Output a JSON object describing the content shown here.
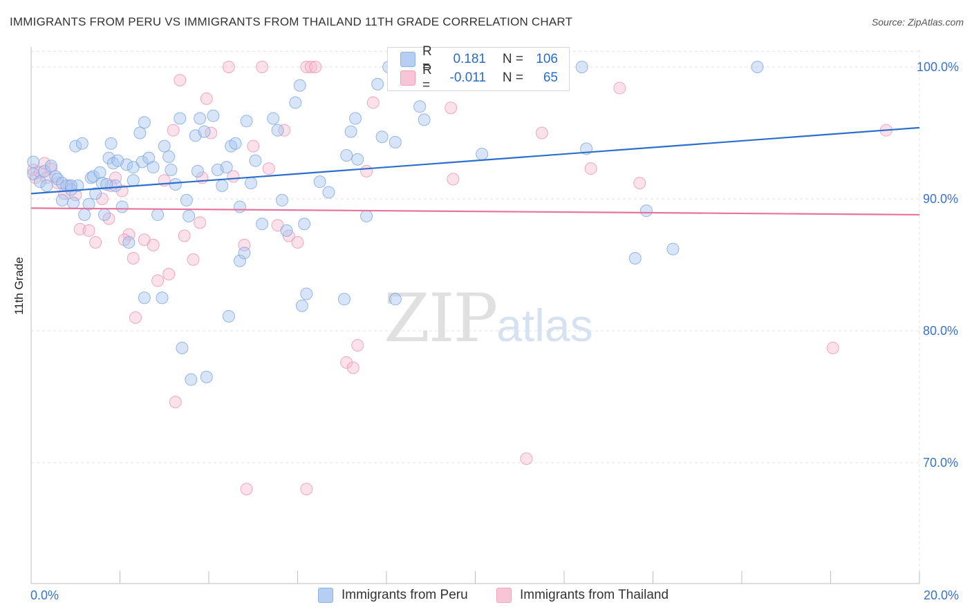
{
  "header": {
    "title": "IMMIGRANTS FROM PERU VS IMMIGRANTS FROM THAILAND 11TH GRADE CORRELATION CHART",
    "source": "Source: ZipAtlas.com"
  },
  "watermark": {
    "zip": "ZIP",
    "atlas": "atlas"
  },
  "legend_stats": {
    "peru": {
      "r_label": "R =",
      "r_value": "0.181",
      "n_label": "N =",
      "n_value": "106"
    },
    "thailand": {
      "r_label": "R =",
      "r_value": "-0.011",
      "n_label": "N =",
      "n_value": "65"
    }
  },
  "colors": {
    "peru_fill": "#a9c6ef",
    "peru_stroke": "#7aa6e0",
    "peru_line": "#2b6fcc",
    "thailand_fill": "#f7bcd0",
    "thailand_stroke": "#ec94b4",
    "thailand_line": "#e8739c",
    "axis_text": "#3a72c6"
  },
  "chart_data": {
    "type": "scatter",
    "title": "IMMIGRANTS FROM PERU VS IMMIGRANTS FROM THAILAND 11TH GRADE CORRELATION CHART",
    "xlabel": "",
    "ylabel": "11th Grade",
    "xlim": [
      0,
      20
    ],
    "ylim": [
      60,
      101.5
    ],
    "x_tick_labels": [
      "0.0%",
      "20.0%"
    ],
    "y_ticks": [
      70,
      80,
      90,
      100
    ],
    "y_tick_labels": [
      "70.0%",
      "80.0%",
      "90.0%",
      "100.0%"
    ],
    "grid": true,
    "legend": [
      "Immigrants from Peru",
      "Immigrants from Thailand"
    ],
    "series": [
      {
        "name": "Immigrants from Peru",
        "trend": {
          "x": [
            0,
            20
          ],
          "y": [
            90.4,
            95.4
          ]
        },
        "points": [
          [
            0.05,
            92.8
          ],
          [
            0.05,
            91.9
          ],
          [
            0.2,
            91.3
          ],
          [
            0.3,
            92.1
          ],
          [
            0.35,
            91.0
          ],
          [
            0.45,
            92.5
          ],
          [
            0.55,
            91.7
          ],
          [
            0.6,
            91.5
          ],
          [
            0.7,
            91.2
          ],
          [
            0.8,
            91.0
          ],
          [
            0.9,
            90.7
          ],
          [
            0.95,
            89.7
          ],
          [
            0.7,
            89.9
          ],
          [
            1.05,
            91.0
          ],
          [
            1.0,
            94.0
          ],
          [
            1.15,
            94.2
          ],
          [
            1.2,
            88.8
          ],
          [
            1.3,
            89.6
          ],
          [
            1.35,
            91.6
          ],
          [
            1.4,
            91.7
          ],
          [
            1.45,
            90.4
          ],
          [
            1.55,
            92.0
          ],
          [
            1.6,
            91.2
          ],
          [
            1.65,
            88.8
          ],
          [
            1.75,
            93.1
          ],
          [
            1.8,
            94.2
          ],
          [
            1.85,
            92.7
          ],
          [
            1.9,
            91.0
          ],
          [
            1.95,
            92.9
          ],
          [
            2.05,
            89.4
          ],
          [
            2.15,
            92.6
          ],
          [
            2.3,
            91.4
          ],
          [
            2.45,
            95.0
          ],
          [
            2.5,
            92.8
          ],
          [
            2.55,
            95.8
          ],
          [
            2.65,
            93.1
          ],
          [
            2.75,
            92.4
          ],
          [
            2.85,
            88.8
          ],
          [
            3.0,
            94.0
          ],
          [
            3.1,
            93.2
          ],
          [
            3.15,
            92.2
          ],
          [
            3.25,
            91.1
          ],
          [
            3.35,
            96.1
          ],
          [
            3.5,
            89.9
          ],
          [
            3.55,
            88.7
          ],
          [
            3.7,
            94.8
          ],
          [
            3.8,
            96.1
          ],
          [
            3.9,
            95.1
          ],
          [
            4.1,
            96.3
          ],
          [
            4.2,
            92.2
          ],
          [
            4.3,
            91.0
          ],
          [
            4.4,
            92.4
          ],
          [
            4.5,
            94.0
          ],
          [
            4.6,
            94.2
          ],
          [
            4.7,
            89.4
          ],
          [
            4.85,
            95.9
          ],
          [
            4.95,
            91.2
          ],
          [
            5.05,
            92.9
          ],
          [
            5.2,
            88.1
          ],
          [
            5.45,
            96.1
          ],
          [
            5.55,
            95.2
          ],
          [
            5.65,
            89.9
          ],
          [
            5.75,
            87.6
          ],
          [
            5.95,
            97.3
          ],
          [
            6.05,
            98.6
          ],
          [
            6.15,
            88.1
          ],
          [
            6.2,
            82.8
          ],
          [
            6.5,
            91.3
          ],
          [
            6.7,
            90.5
          ],
          [
            7.1,
            93.3
          ],
          [
            7.2,
            95.1
          ],
          [
            7.3,
            96.1
          ],
          [
            7.35,
            93.0
          ],
          [
            7.55,
            88.7
          ],
          [
            7.8,
            98.7
          ],
          [
            7.9,
            94.7
          ],
          [
            8.05,
            100.0
          ],
          [
            8.2,
            94.3
          ],
          [
            8.75,
            97.0
          ],
          [
            8.85,
            96.0
          ],
          [
            10.15,
            93.4
          ],
          [
            12.4,
            100.0
          ],
          [
            12.5,
            93.8
          ],
          [
            13.6,
            85.5
          ],
          [
            13.85,
            89.1
          ],
          [
            14.45,
            86.2
          ],
          [
            16.35,
            100.0
          ],
          [
            2.55,
            82.5
          ],
          [
            2.95,
            82.5
          ],
          [
            3.4,
            78.7
          ],
          [
            3.6,
            76.3
          ],
          [
            3.95,
            76.5
          ],
          [
            4.45,
            81.1
          ],
          [
            4.7,
            85.3
          ],
          [
            4.8,
            85.9
          ],
          [
            6.1,
            81.9
          ],
          [
            7.05,
            82.4
          ],
          [
            8.2,
            82.4
          ],
          [
            8.55,
            98.7
          ],
          [
            9.6,
            100.0
          ],
          [
            2.2,
            86.7
          ],
          [
            0.9,
            91.0
          ],
          [
            1.7,
            91.1
          ],
          [
            2.3,
            92.4
          ],
          [
            3.75,
            92.1
          ]
        ]
      },
      {
        "name": "Immigrants from Thailand",
        "trend": {
          "x": [
            0,
            20
          ],
          "y": [
            89.3,
            88.8
          ]
        },
        "points": [
          [
            0.05,
            92.2
          ],
          [
            0.1,
            91.6
          ],
          [
            0.2,
            92.0
          ],
          [
            0.3,
            92.7
          ],
          [
            0.35,
            91.6
          ],
          [
            0.45,
            92.3
          ],
          [
            0.6,
            91.2
          ],
          [
            0.75,
            90.4
          ],
          [
            0.85,
            91.0
          ],
          [
            1.0,
            90.3
          ],
          [
            1.1,
            87.7
          ],
          [
            1.3,
            87.6
          ],
          [
            1.45,
            86.7
          ],
          [
            1.6,
            90.0
          ],
          [
            1.75,
            88.5
          ],
          [
            1.9,
            91.6
          ],
          [
            2.05,
            90.6
          ],
          [
            2.2,
            87.3
          ],
          [
            2.3,
            85.5
          ],
          [
            2.35,
            81.0
          ],
          [
            2.55,
            86.9
          ],
          [
            2.75,
            86.5
          ],
          [
            2.85,
            83.8
          ],
          [
            3.0,
            91.4
          ],
          [
            3.1,
            84.3
          ],
          [
            3.2,
            95.2
          ],
          [
            3.35,
            99.0
          ],
          [
            3.45,
            87.2
          ],
          [
            3.65,
            85.4
          ],
          [
            3.8,
            88.2
          ],
          [
            3.85,
            91.6
          ],
          [
            3.95,
            97.6
          ],
          [
            4.05,
            95.0
          ],
          [
            4.45,
            100.0
          ],
          [
            4.55,
            91.7
          ],
          [
            4.8,
            86.5
          ],
          [
            5.0,
            94.0
          ],
          [
            5.2,
            100.0
          ],
          [
            5.35,
            92.3
          ],
          [
            5.55,
            88.0
          ],
          [
            5.7,
            95.2
          ],
          [
            5.8,
            87.2
          ],
          [
            6.0,
            86.7
          ],
          [
            6.2,
            100.0
          ],
          [
            6.3,
            100.0
          ],
          [
            6.4,
            100.0
          ],
          [
            7.1,
            77.6
          ],
          [
            7.25,
            77.2
          ],
          [
            7.35,
            78.9
          ],
          [
            7.55,
            92.1
          ],
          [
            7.7,
            97.3
          ],
          [
            9.45,
            96.9
          ],
          [
            9.5,
            91.5
          ],
          [
            11.15,
            70.3
          ],
          [
            11.5,
            95.0
          ],
          [
            12.6,
            92.3
          ],
          [
            13.25,
            98.4
          ],
          [
            13.7,
            91.2
          ],
          [
            18.05,
            78.7
          ],
          [
            19.25,
            95.2
          ],
          [
            3.25,
            74.6
          ],
          [
            4.85,
            68.0
          ],
          [
            6.2,
            68.0
          ],
          [
            1.8,
            91.0
          ],
          [
            2.1,
            86.9
          ]
        ]
      }
    ]
  },
  "bottom_legend": {
    "peru_label": "Immigrants from Peru",
    "thailand_label": "Immigrants from Thailand"
  },
  "axes": {
    "y_title": "11th Grade",
    "x_min_label": "0.0%",
    "x_max_label": "20.0%"
  }
}
